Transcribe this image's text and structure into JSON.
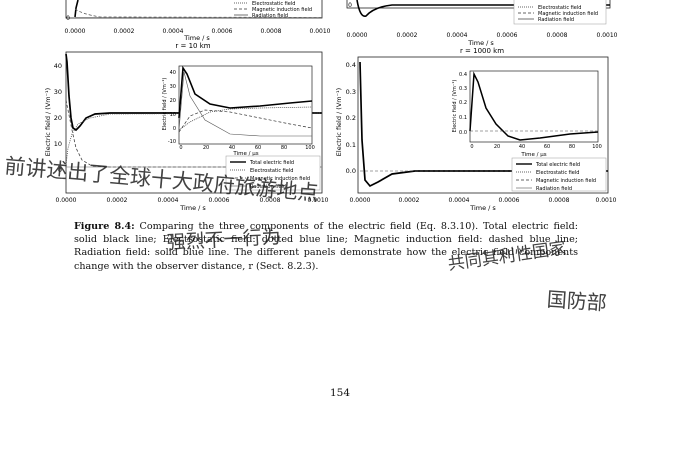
{
  "figure": {
    "top_row": {
      "left": {
        "x_ticks": [
          "0.0000",
          "0.0002",
          "0.0004",
          "0.0006",
          "0.0008",
          "0.0010"
        ],
        "y_tick_visible": "0",
        "x_label": "Time / s",
        "legend": [
          "Electrostatic field",
          "Magnetic induction field",
          "Radiation field"
        ]
      },
      "right": {
        "x_ticks": [
          "0.0000",
          "0.0002",
          "0.0004",
          "0.0006",
          "0.0008",
          "0.0010"
        ],
        "y_tick_visible": "0",
        "x_label": "Time / s",
        "legend": [
          "Electrostatic field",
          "Magnetic induction field",
          "Radiation field"
        ]
      }
    },
    "panel_a": {
      "title": "r = 10 km",
      "y_label": "Electric field / (Vm⁻¹)",
      "x_label": "Time / s",
      "x_ticks": [
        "0.0000",
        "0.0002",
        "0.0004",
        "0.0006",
        "0.0008",
        "0.0010"
      ],
      "y_ticks": [
        "0",
        "10",
        "20",
        "30",
        "40"
      ],
      "inset": {
        "y_label": "Electric field / (Vm⁻¹)",
        "x_label": "Time / μs",
        "x_ticks": [
          "0",
          "20",
          "40",
          "60",
          "80",
          "100"
        ],
        "y_ticks": [
          "-10",
          "0",
          "10",
          "20",
          "30",
          "40"
        ]
      },
      "legend": [
        "Total electric field",
        "Electrostatic field",
        "Magnetic induction field",
        "Radiation field"
      ]
    },
    "panel_b": {
      "title": "r = 1000 km",
      "y_label": "Electric field / (Vm⁻¹)",
      "x_label": "Time / s",
      "x_ticks": [
        "0.0000",
        "0.0002",
        "0.0004",
        "0.0006",
        "0.0008",
        "0.0010"
      ],
      "y_ticks": [
        "0.0",
        "0.1",
        "0.2",
        "0.3",
        "0.4"
      ],
      "inset": {
        "y_label": "Electric field / (Vm⁻¹)",
        "x_label": "Time / μs",
        "x_ticks": [
          "0",
          "20",
          "40",
          "60",
          "80",
          "100"
        ],
        "y_ticks": [
          "0.0",
          "0.1",
          "0.2",
          "0.3",
          "0.4"
        ]
      },
      "legend": [
        "Total electric field",
        "Electrostatic field",
        "Magnetic induction field",
        "Radiation field"
      ]
    }
  },
  "caption": {
    "label": "Figure 8.4:",
    "text": "Comparing the three components of the electric field (Eq. 8.3.10). Total electric field: solid black line; Electrostatic field: dotted blue line; Magnetic induction field: dashed blue line; Radiation field: solid blue line. The different panels demonstrate how the electric field components change with the observer distance, r (Sect. 8.2.3)."
  },
  "page_number": "154",
  "handwriting": {
    "line1": "前讲述出了全球十大政府旅游地点",
    "line2": "强烈不一行为",
    "line3": "共同其利性国家",
    "line4": "国防部"
  }
}
